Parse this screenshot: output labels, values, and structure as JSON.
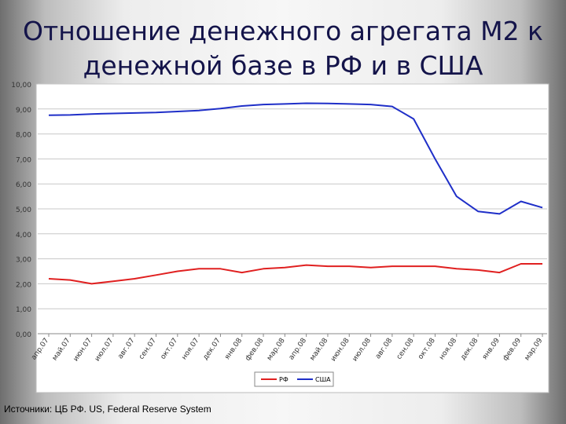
{
  "title_lines": [
    "Отношение денежного агрегата М2 к",
    "денежной базе в РФ и в США"
  ],
  "source": "Источники: ЦБ РФ. US, Federal Reserve System",
  "colors": {
    "rf": "#e02020",
    "usa": "#1f2fc8",
    "grid": "#c8c8c8"
  },
  "chart_data": {
    "type": "line",
    "title": "Отношение денежного агрегата М2 к денежной базе в РФ и в США",
    "xlabel": "",
    "ylabel": "",
    "ylim": [
      0,
      10
    ],
    "yticks": [
      "0,00",
      "1,00",
      "2,00",
      "3,00",
      "4,00",
      "5,00",
      "6,00",
      "7,00",
      "8,00",
      "9,00",
      "10,00"
    ],
    "grid": true,
    "legend_position": "bottom",
    "categories": [
      "апр.07",
      "май.07",
      "июн.07",
      "июл.07",
      "авг.07",
      "сен.07",
      "окт.07",
      "ноя.07",
      "дек.07",
      "янв.08",
      "фев.08",
      "мар.08",
      "апр.08",
      "май.08",
      "июн.08",
      "июл.08",
      "авг.08",
      "сен.08",
      "окт.08",
      "ноя.08",
      "дек.08",
      "янв.09",
      "фев.09",
      "мар.09"
    ],
    "series": [
      {
        "name": "РФ",
        "color": "#e02020",
        "values": [
          2.2,
          2.15,
          2.0,
          2.1,
          2.2,
          2.35,
          2.5,
          2.6,
          2.6,
          2.45,
          2.6,
          2.65,
          2.75,
          2.7,
          2.7,
          2.65,
          2.7,
          2.7,
          2.7,
          2.6,
          2.55,
          2.45,
          2.8,
          2.8
        ]
      },
      {
        "name": "США",
        "color": "#1f2fc8",
        "values": [
          8.75,
          8.76,
          8.8,
          8.82,
          8.84,
          8.86,
          8.9,
          8.94,
          9.02,
          9.12,
          9.18,
          9.2,
          9.23,
          9.22,
          9.2,
          9.18,
          9.1,
          8.6,
          7.0,
          5.5,
          4.9,
          4.8,
          5.3,
          5.05
        ]
      }
    ]
  }
}
